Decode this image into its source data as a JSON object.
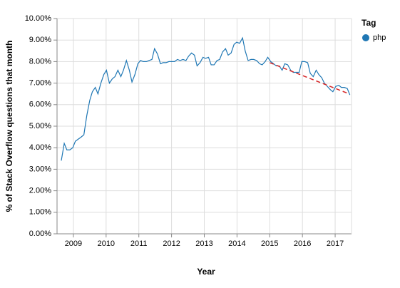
{
  "chart_data": {
    "type": "line",
    "y_label": "% of Stack Overflow questions that month",
    "x_label": "Year",
    "legend_title": "Tag",
    "legend": "right",
    "grid": true,
    "xlim": [
      2008.5,
      2017.5
    ],
    "xticks": [
      2009,
      2010,
      2011,
      2012,
      2013,
      2014,
      2015,
      2016,
      2017
    ],
    "ylim": [
      0,
      10
    ],
    "yticks": [
      {
        "value": 0,
        "label": "0.00%"
      },
      {
        "value": 1,
        "label": "1.00%"
      },
      {
        "value": 2,
        "label": "2.00%"
      },
      {
        "value": 3,
        "label": "3.00%"
      },
      {
        "value": 4,
        "label": "4.00%"
      },
      {
        "value": 5,
        "label": "5.00%"
      },
      {
        "value": 6,
        "label": "6.00%"
      },
      {
        "value": 7,
        "label": "7.00%"
      },
      {
        "value": 8,
        "label": "8.00%"
      },
      {
        "value": 9,
        "label": "9.00%"
      },
      {
        "value": 10,
        "label": "10.00%"
      }
    ],
    "x": [
      2008.63,
      2008.72,
      2008.8,
      2008.89,
      2008.98,
      2009.06,
      2009.15,
      2009.24,
      2009.32,
      2009.41,
      2009.5,
      2009.58,
      2009.67,
      2009.75,
      2009.84,
      2009.93,
      2010.01,
      2010.1,
      2010.19,
      2010.27,
      2010.36,
      2010.45,
      2010.53,
      2010.62,
      2010.71,
      2010.79,
      2010.88,
      2010.97,
      2011.05,
      2011.14,
      2011.23,
      2011.31,
      2011.4,
      2011.48,
      2011.57,
      2011.66,
      2011.74,
      2011.83,
      2011.92,
      2012.0,
      2012.09,
      2012.18,
      2012.26,
      2012.35,
      2012.44,
      2012.52,
      2012.61,
      2012.7,
      2012.78,
      2012.87,
      2012.96,
      2013.04,
      2013.13,
      2013.21,
      2013.3,
      2013.39,
      2013.47,
      2013.56,
      2013.65,
      2013.73,
      2013.82,
      2013.91,
      2013.99,
      2014.08,
      2014.17,
      2014.25,
      2014.34,
      2014.43,
      2014.51,
      2014.6,
      2014.69,
      2014.77,
      2014.86,
      2014.94,
      2015.03,
      2015.12,
      2015.2,
      2015.29,
      2015.38,
      2015.46,
      2015.55,
      2015.64,
      2015.72,
      2015.81,
      2015.9,
      2015.98,
      2016.07,
      2016.16,
      2016.24,
      2016.33,
      2016.42,
      2016.5,
      2016.59,
      2016.67,
      2016.76,
      2016.85,
      2016.93,
      2017.02,
      2017.11,
      2017.19,
      2017.28,
      2017.37,
      2017.45
    ],
    "series": [
      {
        "name": "php",
        "color": "#1f77b4",
        "values": [
          3.4,
          4.2,
          3.9,
          3.9,
          4.0,
          4.3,
          4.4,
          4.5,
          4.6,
          5.5,
          6.2,
          6.6,
          6.8,
          6.5,
          7.0,
          7.4,
          7.6,
          7.0,
          7.2,
          7.3,
          7.6,
          7.3,
          7.6,
          8.05,
          7.6,
          7.05,
          7.4,
          7.9,
          8.05,
          8.0,
          8.0,
          8.05,
          8.1,
          8.6,
          8.35,
          7.9,
          7.95,
          7.95,
          8.0,
          8.0,
          8.0,
          8.1,
          8.05,
          8.1,
          8.05,
          8.25,
          8.4,
          8.3,
          7.8,
          7.95,
          8.2,
          8.15,
          8.2,
          7.85,
          7.85,
          8.05,
          8.1,
          8.45,
          8.6,
          8.3,
          8.4,
          8.8,
          8.9,
          8.85,
          9.1,
          8.5,
          8.05,
          8.1,
          8.1,
          8.05,
          7.9,
          7.85,
          8.0,
          8.2,
          8.0,
          7.9,
          7.8,
          7.8,
          7.6,
          7.9,
          7.85,
          7.6,
          7.5,
          7.5,
          7.5,
          8.0,
          8.0,
          7.95,
          7.45,
          7.3,
          7.6,
          7.4,
          7.25,
          7.0,
          6.85,
          6.7,
          6.6,
          6.85,
          6.9,
          6.8,
          6.8,
          6.75,
          6.45
        ]
      }
    ],
    "trend": {
      "x": [
        2015.0,
        2017.43
      ],
      "values": [
        7.95,
        6.5
      ],
      "color": "#d62728",
      "dashed": true
    }
  }
}
